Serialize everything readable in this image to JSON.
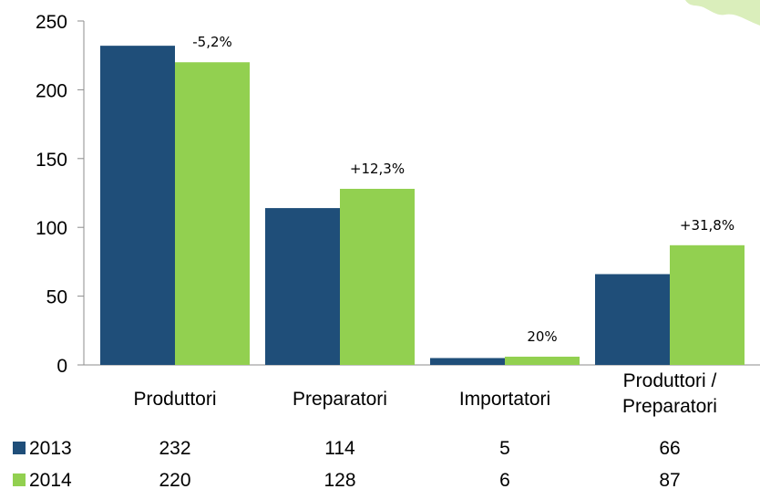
{
  "chart_data": {
    "type": "bar",
    "categories": [
      [
        "Produttori"
      ],
      [
        "Preparatori"
      ],
      [
        "Importatori"
      ],
      [
        "Produttori /",
        "Preparatori"
      ]
    ],
    "series": [
      {
        "name": "2013",
        "values": [
          232,
          114,
          5,
          66
        ],
        "color": "#1f4e79"
      },
      {
        "name": "2014",
        "values": [
          220,
          128,
          6,
          87
        ],
        "color": "#92d050"
      }
    ],
    "annotations": [
      "-5,2%",
      "+12,3%",
      "20%",
      "+31,8%"
    ],
    "yticks": [
      "0",
      "50",
      "100",
      "150",
      "200",
      "250"
    ],
    "ylim": [
      0,
      250
    ],
    "title": "",
    "xlabel": "",
    "ylabel": "",
    "legend": "data-table-left",
    "grid": false
  }
}
